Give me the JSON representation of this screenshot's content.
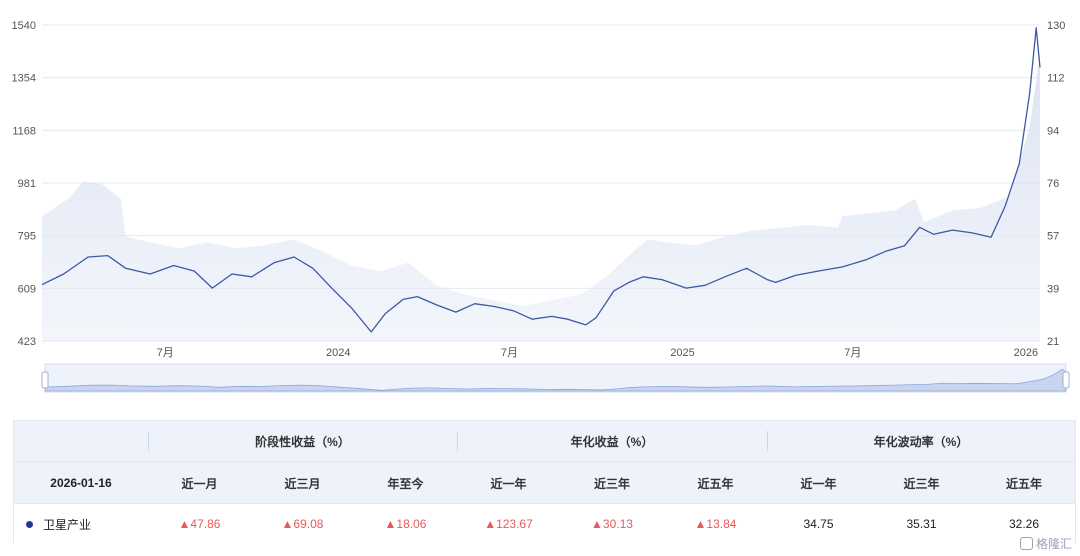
{
  "chart_data": {
    "type": "line",
    "left_axis": {
      "ticks": [
        "1540",
        "1354",
        "1168",
        "981",
        "795",
        "609",
        "423"
      ],
      "ylim": [
        423,
        1540
      ]
    },
    "right_axis": {
      "ticks": [
        "130",
        "112",
        "94",
        "76",
        "57",
        "39",
        "21"
      ],
      "ylim": [
        21,
        130
      ]
    },
    "x_ticks": [
      "7月",
      "2024",
      "7月",
      "2025",
      "7月",
      "2026"
    ],
    "grid": true,
    "series": [
      {
        "axis": "left",
        "style": "line",
        "color": "#3b5aa5",
        "points": [
          [
            "2023-02-20",
            622
          ],
          [
            "2023-03-15",
            660
          ],
          [
            "2023-04-10",
            720
          ],
          [
            "2023-05-01",
            725
          ],
          [
            "2023-05-20",
            680
          ],
          [
            "2023-06-15",
            660
          ],
          [
            "2023-07-10",
            690
          ],
          [
            "2023-08-01",
            670
          ],
          [
            "2023-08-20",
            610
          ],
          [
            "2023-09-10",
            660
          ],
          [
            "2023-10-01",
            650
          ],
          [
            "2023-10-25",
            700
          ],
          [
            "2023-11-15",
            720
          ],
          [
            "2023-12-05",
            680
          ],
          [
            "2023-12-25",
            610
          ],
          [
            "2024-01-15",
            540
          ],
          [
            "2024-02-05",
            455
          ],
          [
            "2024-02-20",
            520
          ],
          [
            "2024-03-10",
            570
          ],
          [
            "2024-03-25",
            580
          ],
          [
            "2024-04-15",
            550
          ],
          [
            "2024-05-05",
            525
          ],
          [
            "2024-05-25",
            555
          ],
          [
            "2024-06-15",
            545
          ],
          [
            "2024-07-05",
            530
          ],
          [
            "2024-07-25",
            500
          ],
          [
            "2024-08-15",
            510
          ],
          [
            "2024-09-01",
            500
          ],
          [
            "2024-09-20",
            480
          ],
          [
            "2024-10-01",
            505
          ],
          [
            "2024-10-20",
            600
          ],
          [
            "2024-11-05",
            630
          ],
          [
            "2024-11-20",
            650
          ],
          [
            "2024-12-10",
            640
          ],
          [
            "2025-01-05",
            610
          ],
          [
            "2025-01-25",
            620
          ],
          [
            "2025-02-15",
            650
          ],
          [
            "2025-03-10",
            680
          ],
          [
            "2025-04-01",
            640
          ],
          [
            "2025-04-10",
            630
          ],
          [
            "2025-05-01",
            655
          ],
          [
            "2025-05-25",
            670
          ],
          [
            "2025-06-20",
            685
          ],
          [
            "2025-07-15",
            710
          ],
          [
            "2025-08-05",
            740
          ],
          [
            "2025-08-25",
            760
          ],
          [
            "2025-09-10",
            825
          ],
          [
            "2025-09-25",
            800
          ],
          [
            "2025-10-15",
            815
          ],
          [
            "2025-11-05",
            805
          ],
          [
            "2025-11-25",
            790
          ],
          [
            "2025-12-10",
            900
          ],
          [
            "2025-12-25",
            1050
          ],
          [
            "2026-01-05",
            1300
          ],
          [
            "2026-01-12",
            1530
          ],
          [
            "2026-01-16",
            1390
          ]
        ]
      },
      {
        "axis": "right",
        "style": "area",
        "color": "#dde4f3",
        "points": [
          [
            "2023-02-20",
            64
          ],
          [
            "2023-03-20",
            70
          ],
          [
            "2023-04-05",
            76
          ],
          [
            "2023-04-25",
            75
          ],
          [
            "2023-05-15",
            70
          ],
          [
            "2023-05-20",
            57
          ],
          [
            "2023-06-15",
            55
          ],
          [
            "2023-07-15",
            53
          ],
          [
            "2023-08-15",
            55
          ],
          [
            "2023-09-15",
            53
          ],
          [
            "2023-10-15",
            54
          ],
          [
            "2023-11-15",
            56
          ],
          [
            "2023-12-15",
            52
          ],
          [
            "2024-01-15",
            47
          ],
          [
            "2024-02-15",
            45
          ],
          [
            "2024-03-15",
            48
          ],
          [
            "2024-04-15",
            40
          ],
          [
            "2024-05-15",
            37
          ],
          [
            "2024-06-15",
            35
          ],
          [
            "2024-07-15",
            33
          ],
          [
            "2024-08-15",
            35
          ],
          [
            "2024-09-15",
            37
          ],
          [
            "2024-10-15",
            44
          ],
          [
            "2024-11-10",
            52
          ],
          [
            "2024-11-25",
            56
          ],
          [
            "2024-12-15",
            55
          ],
          [
            "2025-01-15",
            54
          ],
          [
            "2025-02-15",
            57
          ],
          [
            "2025-03-15",
            59
          ],
          [
            "2025-04-15",
            60
          ],
          [
            "2025-05-15",
            61
          ],
          [
            "2025-06-15",
            60
          ],
          [
            "2025-06-20",
            64
          ],
          [
            "2025-07-15",
            65
          ],
          [
            "2025-08-15",
            66
          ],
          [
            "2025-09-05",
            70
          ],
          [
            "2025-09-15",
            62
          ],
          [
            "2025-10-15",
            66
          ],
          [
            "2025-11-15",
            67
          ],
          [
            "2025-12-15",
            71
          ],
          [
            "2026-01-05",
            95
          ],
          [
            "2026-01-16",
            120
          ]
        ]
      }
    ]
  },
  "table": {
    "groups": [
      "阶段性收益（%）",
      "年化收益（%）",
      "年化波动率（%）"
    ],
    "date": "2026-01-16",
    "columns": [
      "近一月",
      "近三月",
      "年至今",
      "近一年",
      "近三年",
      "近五年",
      "近一年",
      "近三年",
      "近五年"
    ],
    "row": {
      "name": "卫星产业",
      "values": [
        "▲47.86",
        "▲69.08",
        "▲18.06",
        "▲123.67",
        "▲30.13",
        "▲13.84",
        "34.75",
        "35.31",
        "32.26"
      ]
    }
  },
  "watermark": "格隆汇"
}
